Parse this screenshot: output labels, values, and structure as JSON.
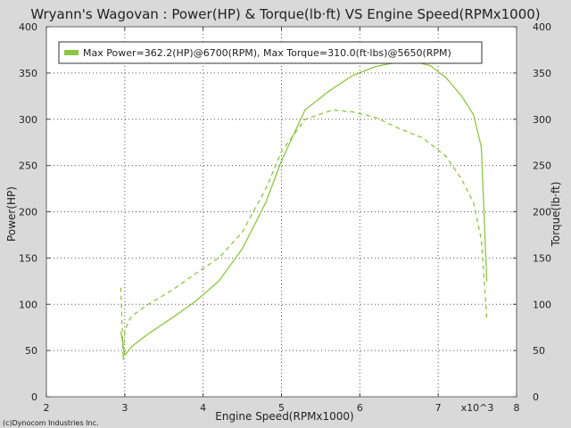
{
  "chart_data": {
    "type": "line",
    "title": "Wryann's Wagovan : Power(HP) & Torque(lb·ft) VS Engine Speed(RPMx1000)",
    "xlabel": "Engine Speed(RPMx1000)",
    "x_multiplier_label": "x10^3",
    "ylabel_left": "Power(HP)",
    "ylabel_right": "Torque(lb·ft)",
    "xlim": [
      2,
      8
    ],
    "ylim": [
      0,
      400
    ],
    "x_ticks": [
      "2",
      "3",
      "4",
      "5",
      "6",
      "7",
      "8"
    ],
    "y_ticks_left": [
      "0",
      "50",
      "100",
      "150",
      "200",
      "250",
      "300",
      "350",
      "400"
    ],
    "y_ticks_right": [
      "0",
      "50",
      "100",
      "150",
      "200",
      "250",
      "300",
      "350",
      "400"
    ],
    "grid": true,
    "legend_position": "top-left",
    "legend_text": "Max Power=362.2(HP)@6700(RPM), Max Torque=310.0(ft·lbs)@5650(RPM)",
    "series": [
      {
        "style": "solid",
        "color": "#8dc63f",
        "x": [
          2.95,
          2.98,
          3.0,
          3.05,
          3.1,
          3.3,
          3.6,
          3.9,
          4.2,
          4.5,
          4.8,
          5.0,
          5.3,
          5.6,
          5.9,
          6.2,
          6.5,
          6.7,
          6.9,
          7.1,
          7.3,
          7.45,
          7.55,
          7.62
        ],
        "y": [
          70,
          55,
          45,
          50,
          55,
          68,
          85,
          103,
          125,
          160,
          210,
          255,
          310,
          330,
          347,
          357,
          362,
          362.2,
          358,
          345,
          325,
          305,
          270,
          125
        ]
      },
      {
        "style": "dashed",
        "color": "#8dc63f",
        "x": [
          2.95,
          2.98,
          3.0,
          3.05,
          3.1,
          3.3,
          3.6,
          3.9,
          4.2,
          4.5,
          4.8,
          5.0,
          5.3,
          5.65,
          5.9,
          6.2,
          6.5,
          6.8,
          7.1,
          7.3,
          7.45,
          7.55,
          7.62
        ],
        "y": [
          118,
          40,
          70,
          82,
          88,
          100,
          115,
          133,
          150,
          178,
          225,
          265,
          300,
          310,
          308,
          302,
          290,
          280,
          260,
          235,
          210,
          170,
          85
        ]
      }
    ]
  },
  "footer": {
    "copyright": "(c)Dynocom Industries Inc."
  }
}
